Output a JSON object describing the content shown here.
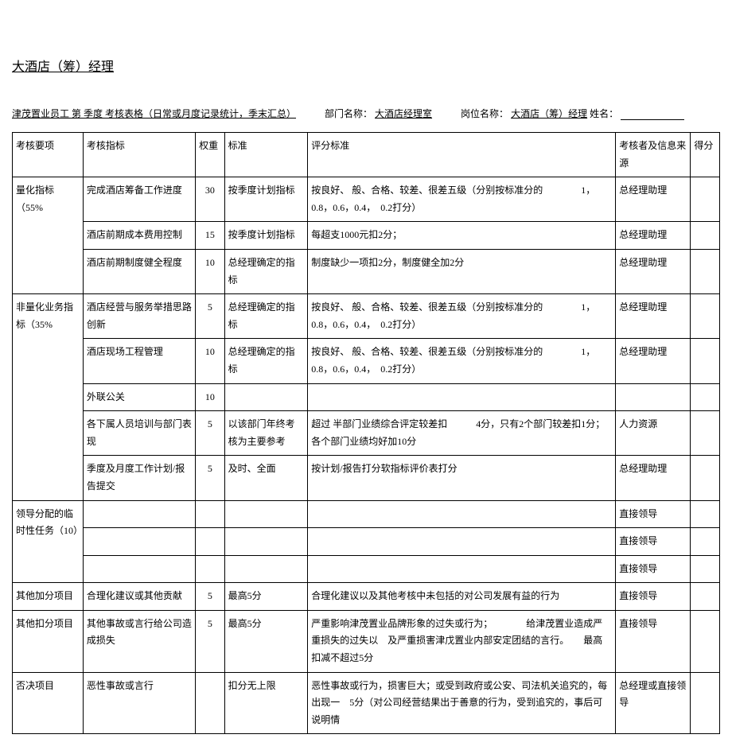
{
  "title": "大酒店（筹）经理",
  "form_header": {
    "prefix": "津茂置业员工 第 季度 考核表格（日常或月度记录统计，季末汇总）",
    "dept_label": "部门名称：",
    "dept_value": "大酒店经理室",
    "position_label": "岗位名称：",
    "position_value": "大酒店（筹）经理",
    "name_label": "姓名："
  },
  "header": {
    "c1": "考核要项",
    "c2": "考核指标",
    "c3": "权重",
    "c4": "标准",
    "c5": "评分标准",
    "c6": "考核者及信息来源",
    "c7": "得分"
  },
  "rows": {
    "cat1": "量化指标（55%",
    "cat2": "非量化业务指标（35%",
    "cat3": "领导分配的临时性任务（10）",
    "cat4": "其他加分项目",
    "cat5": "其他扣分项目",
    "cat6": "否决项目",
    "r1": {
      "ind": "完成酒店筹备工作进度",
      "w": "30",
      "std": "按季度计划指标",
      "crit": "按良好、 般、合格、较差、很差五级（分别按标准分的　　　　1，0.8，0.6，0.4，　0.2打分）",
      "ev": "总经理助理"
    },
    "r2": {
      "ind": "酒店前期成本费用控制",
      "w": "15",
      "std": "按季度计划指标",
      "crit": "每超支1000元扣2分；",
      "ev": "总经理助理"
    },
    "r3": {
      "ind": "酒店前期制度健全程度",
      "w": "10",
      "std": "总经理确定的指标",
      "crit": "制度缺少一项扣2分，制度健全加2分",
      "ev": "总经理助理"
    },
    "r4": {
      "ind": "酒店经营与服务举措思路创新",
      "w": "5",
      "std": "总经理确定的指标",
      "crit": "按良好、 般、合格、较差、很差五级（分别按标准分的　　　　1，0.8，0.6，0.4，　0.2打分）",
      "ev": "总经理助理"
    },
    "r5": {
      "ind": "酒店现场工程管理",
      "w": "10",
      "std": "总经理确定的指标",
      "crit": "按良好、 般、合格、较差、很差五级（分别按标准分的　　　　1，0.8，0.6，0.4，　0.2打分）",
      "ev": "总经理助理"
    },
    "r6": {
      "ind": "外联公关",
      "w": "10",
      "std": "",
      "crit": "",
      "ev": ""
    },
    "r7": {
      "ind": "各下属人员培训与部门表现",
      "w": "5",
      "std": "以该部门年终考核为主要参考",
      "crit": "超过 半部门业绩综合评定较差扣　　　4分，只有2个部门较差扣1分；各个部门业绩均好加10分",
      "ev": "人力资源"
    },
    "r8": {
      "ind": "季度及月度工作计划/报告提交",
      "w": "5",
      "std": "及时、全面",
      "crit": "按计划/报告打分软指标评价表打分",
      "ev": "总经理助理"
    },
    "r9": {
      "ind": "",
      "w": "",
      "std": "",
      "crit": "",
      "ev": "直接领导"
    },
    "r10": {
      "ind": "",
      "w": "",
      "std": "",
      "crit": "",
      "ev": "直接领导"
    },
    "r11": {
      "ind": "",
      "w": "",
      "std": "",
      "crit": "",
      "ev": "直接领导"
    },
    "r12": {
      "ind": "合理化建议或其他贡献",
      "w": "5",
      "std": "最高5分",
      "crit": "合理化建议以及其他考核中未包括的对公司发展有益的行为",
      "ev": "直接领导"
    },
    "r13": {
      "ind": "其他事故或言行给公司造成损失",
      "w": "5",
      "std": "最高5分",
      "crit": "严重影响津茂置业品牌形象的过失或行为；　　　　给津茂置业造成严重损失的过失以　及严重损害津戊置业内部安定团结的言行。　　最高扣减不超过5分",
      "ev": "直接领导"
    },
    "r14": {
      "ind": "恶性事故或言行",
      "w": "",
      "std": "扣分无上限",
      "crit": "恶性事故或行为，损害巨大；或受到政府或公安、司法机关追究的，每出现一　5分（对公司经营结果出于善意的行为，受到追究的，事后可说明情",
      "ev": "总经理或直接领导"
    }
  }
}
